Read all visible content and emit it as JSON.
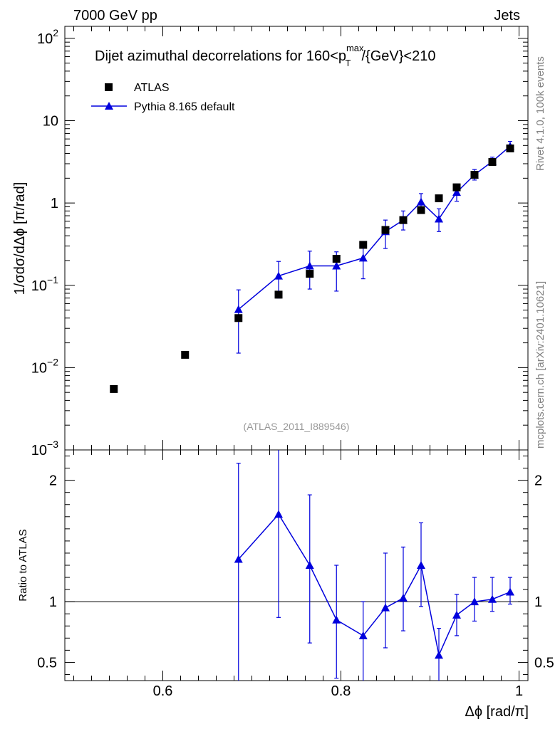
{
  "header": {
    "left": "7000 GeV pp",
    "right": "Jets"
  },
  "side_labels": {
    "top": "Rivet 4.1.0,  100k events",
    "bottom": "mcplots.cern.ch [arXiv:2401.10621]"
  },
  "analysis_tag": "(ATLAS_2011_I889546)",
  "colors": {
    "data": "#000000",
    "mc": "#0000dd",
    "axis": "#000000",
    "side_text": "#808080"
  },
  "chart_data": [
    {
      "type": "scatter",
      "title": "Dijet azimuthal decorrelations for 160<p_T^max/{GeV}<210",
      "title_parts": {
        "before": "Dijet azimuthal decorrelations for 160<p",
        "sub": "T",
        "sup": "max",
        "after": "/{GeV}<210"
      },
      "ylabel": "1/σdσ/dΔϕ [π/rad]",
      "yscale": "log",
      "ylim": [
        0.001,
        140
      ],
      "xlim": [
        0.49,
        1.01
      ],
      "yticks": [
        {
          "value": 100,
          "base": "10",
          "exp": "2"
        },
        {
          "value": 10,
          "label": "10"
        },
        {
          "value": 1,
          "label": "1"
        },
        {
          "value": 0.1,
          "base": "10",
          "exp": "−1"
        },
        {
          "value": 0.01,
          "base": "10",
          "exp": "−2"
        },
        {
          "value": 0.001,
          "base": "10",
          "exp": "−3"
        }
      ],
      "legend_position": "top-left",
      "series": [
        {
          "name": "ATLAS",
          "marker": "square",
          "x": [
            0.545,
            0.625,
            0.685,
            0.73,
            0.765,
            0.795,
            0.825,
            0.85,
            0.87,
            0.89,
            0.91,
            0.93,
            0.95,
            0.97,
            0.99
          ],
          "y": [
            0.0055,
            0.0143,
            0.04,
            0.077,
            0.138,
            0.21,
            0.31,
            0.47,
            0.62,
            0.82,
            1.14,
            1.55,
            2.2,
            3.15,
            4.6
          ]
        },
        {
          "name": "Pythia 8.165 default",
          "marker": "triangle",
          "x": [
            0.685,
            0.73,
            0.765,
            0.795,
            0.825,
            0.85,
            0.87,
            0.89,
            0.91,
            0.93,
            0.95,
            0.97,
            0.99
          ],
          "y": [
            0.051,
            0.13,
            0.172,
            0.172,
            0.215,
            0.45,
            0.62,
            1.03,
            0.64,
            1.35,
            2.2,
            3.2,
            4.9
          ],
          "err_lo": [
            0.015,
            0.07,
            0.09,
            0.085,
            0.12,
            0.28,
            0.47,
            0.77,
            0.45,
            1.05,
            1.9,
            2.9,
            4.4
          ],
          "err_hi": [
            0.088,
            0.195,
            0.26,
            0.255,
            0.33,
            0.62,
            0.8,
            1.3,
            0.85,
            1.7,
            2.55,
            3.6,
            5.6
          ]
        }
      ]
    },
    {
      "type": "line",
      "ylabel": "Ratio to ATLAS",
      "xlabel": "Δϕ [rad/π]",
      "ylim": [
        0.35,
        2.25
      ],
      "xlim": [
        0.49,
        1.01
      ],
      "yticks": [
        0.5,
        1,
        2
      ],
      "ytick_labels": [
        "0.5",
        "1",
        "2"
      ],
      "xticks": [
        0.6,
        0.8,
        1
      ],
      "xtick_labels": [
        "0.6",
        "0.8",
        "1"
      ],
      "reference_line": 1,
      "series": [
        {
          "name": "Pythia 8.165 default",
          "x": [
            0.685,
            0.73,
            0.765,
            0.795,
            0.825,
            0.85,
            0.87,
            0.89,
            0.91,
            0.93,
            0.95,
            0.97,
            0.99
          ],
          "y": [
            1.35,
            1.72,
            1.3,
            0.85,
            0.72,
            0.95,
            1.03,
            1.3,
            0.56,
            0.89,
            1.0,
            1.02,
            1.08
          ],
          "err_lo": [
            0.3,
            0.87,
            0.66,
            0.37,
            0.3,
            0.62,
            0.76,
            0.96,
            0.3,
            0.72,
            0.84,
            0.92,
            0.98
          ],
          "err_hi": [
            2.14,
            2.3,
            1.88,
            1.3,
            1.0,
            1.4,
            1.45,
            1.65,
            0.78,
            1.06,
            1.2,
            1.2,
            1.2
          ]
        }
      ]
    }
  ]
}
